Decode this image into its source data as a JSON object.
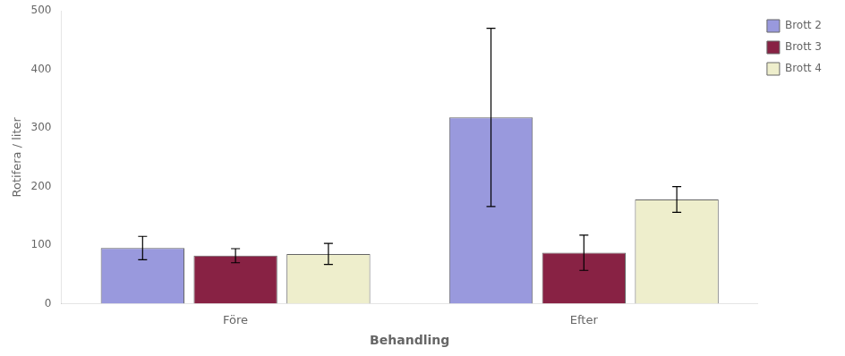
{
  "chart_data": {
    "type": "bar",
    "categories": [
      "Före",
      "Efter"
    ],
    "series": [
      {
        "name": "Brott 2",
        "color": "#9999dd",
        "values": [
          95,
          318
        ],
        "errors": [
          20,
          152
        ]
      },
      {
        "name": "Brott 3",
        "color": "#882244",
        "values": [
          82,
          87
        ],
        "errors": [
          12,
          30
        ]
      },
      {
        "name": "Brott 4",
        "color": "#eeeecc",
        "values": [
          85,
          178
        ],
        "errors": [
          18,
          22
        ]
      }
    ],
    "xlabel": "Behandling",
    "ylabel": "Rotifera / liter",
    "ylim": [
      0,
      500
    ],
    "yticks": [
      0,
      100,
      200,
      300,
      400,
      500
    ],
    "grid": false,
    "legend": "right"
  }
}
